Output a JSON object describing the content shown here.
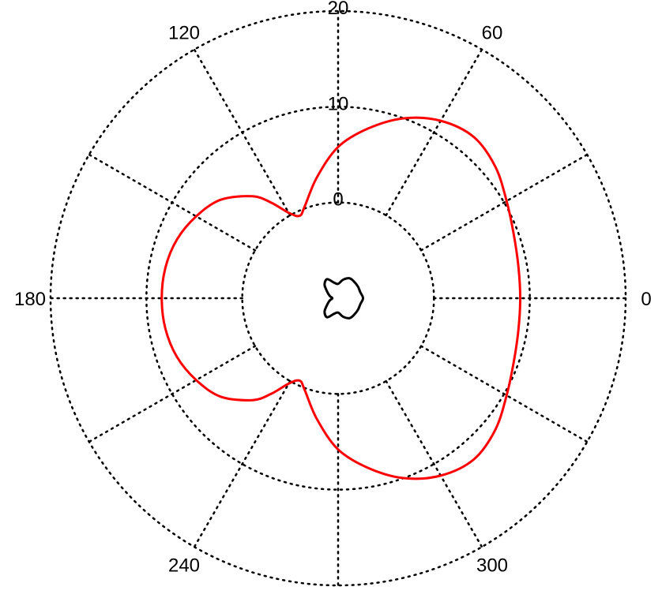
{
  "chart_data": {
    "type": "polar",
    "title": "",
    "grid": true,
    "r_axis": {
      "range": [
        -10,
        20
      ],
      "ticks": [
        0,
        10,
        20
      ],
      "tick_labels": [
        "0",
        "10",
        "20"
      ]
    },
    "theta_axis": {
      "unit": "degrees",
      "spokes_every": 30,
      "tick_labels": [
        {
          "angle": 0,
          "label": "0"
        },
        {
          "angle": 60,
          "label": "60"
        },
        {
          "angle": 120,
          "label": "120"
        },
        {
          "angle": 180,
          "label": "180"
        },
        {
          "angle": 240,
          "label": "240"
        },
        {
          "angle": 300,
          "label": "300"
        }
      ]
    },
    "series": [
      {
        "color": "#ff0000",
        "theta": [
          0,
          10,
          20,
          30,
          40,
          50,
          60,
          70,
          80,
          90,
          100,
          110,
          115,
          120,
          125,
          130,
          140,
          150,
          160,
          170,
          180,
          190,
          200,
          210,
          220,
          230,
          235,
          240,
          245,
          250,
          260,
          270,
          280,
          290,
          300,
          310,
          320,
          330,
          340,
          350,
          360
        ],
        "r": [
          9.0,
          9.1,
          9.5,
          10.3,
          11.4,
          12.0,
          11.4,
          10.0,
          8.0,
          5.8,
          2.8,
          0.2,
          -0.5,
          0.3,
          2.2,
          3.9,
          6.0,
          7.1,
          7.9,
          8.3,
          8.4,
          8.3,
          7.9,
          7.1,
          6.0,
          3.9,
          2.2,
          0.3,
          -0.5,
          0.2,
          2.8,
          5.8,
          8.0,
          10.0,
          11.4,
          12.0,
          11.4,
          10.3,
          9.5,
          9.1,
          9.0
        ]
      },
      {
        "color": "#000000",
        "theta": [
          0,
          15,
          30,
          45,
          60,
          75,
          90,
          105,
          120,
          135,
          150,
          165,
          180,
          195,
          210,
          225,
          240,
          255,
          270,
          285,
          300,
          315,
          330,
          345,
          360
        ],
        "r": [
          -7.4,
          -7.6,
          -7.6,
          -7.6,
          -7.6,
          -8.0,
          -8.5,
          -8.3,
          -7.7,
          -8.0,
          -8.7,
          -9.1,
          -9.4,
          -9.1,
          -8.7,
          -8.0,
          -7.7,
          -8.3,
          -8.5,
          -8.0,
          -7.6,
          -7.6,
          -7.6,
          -7.6,
          -7.4
        ]
      }
    ]
  }
}
